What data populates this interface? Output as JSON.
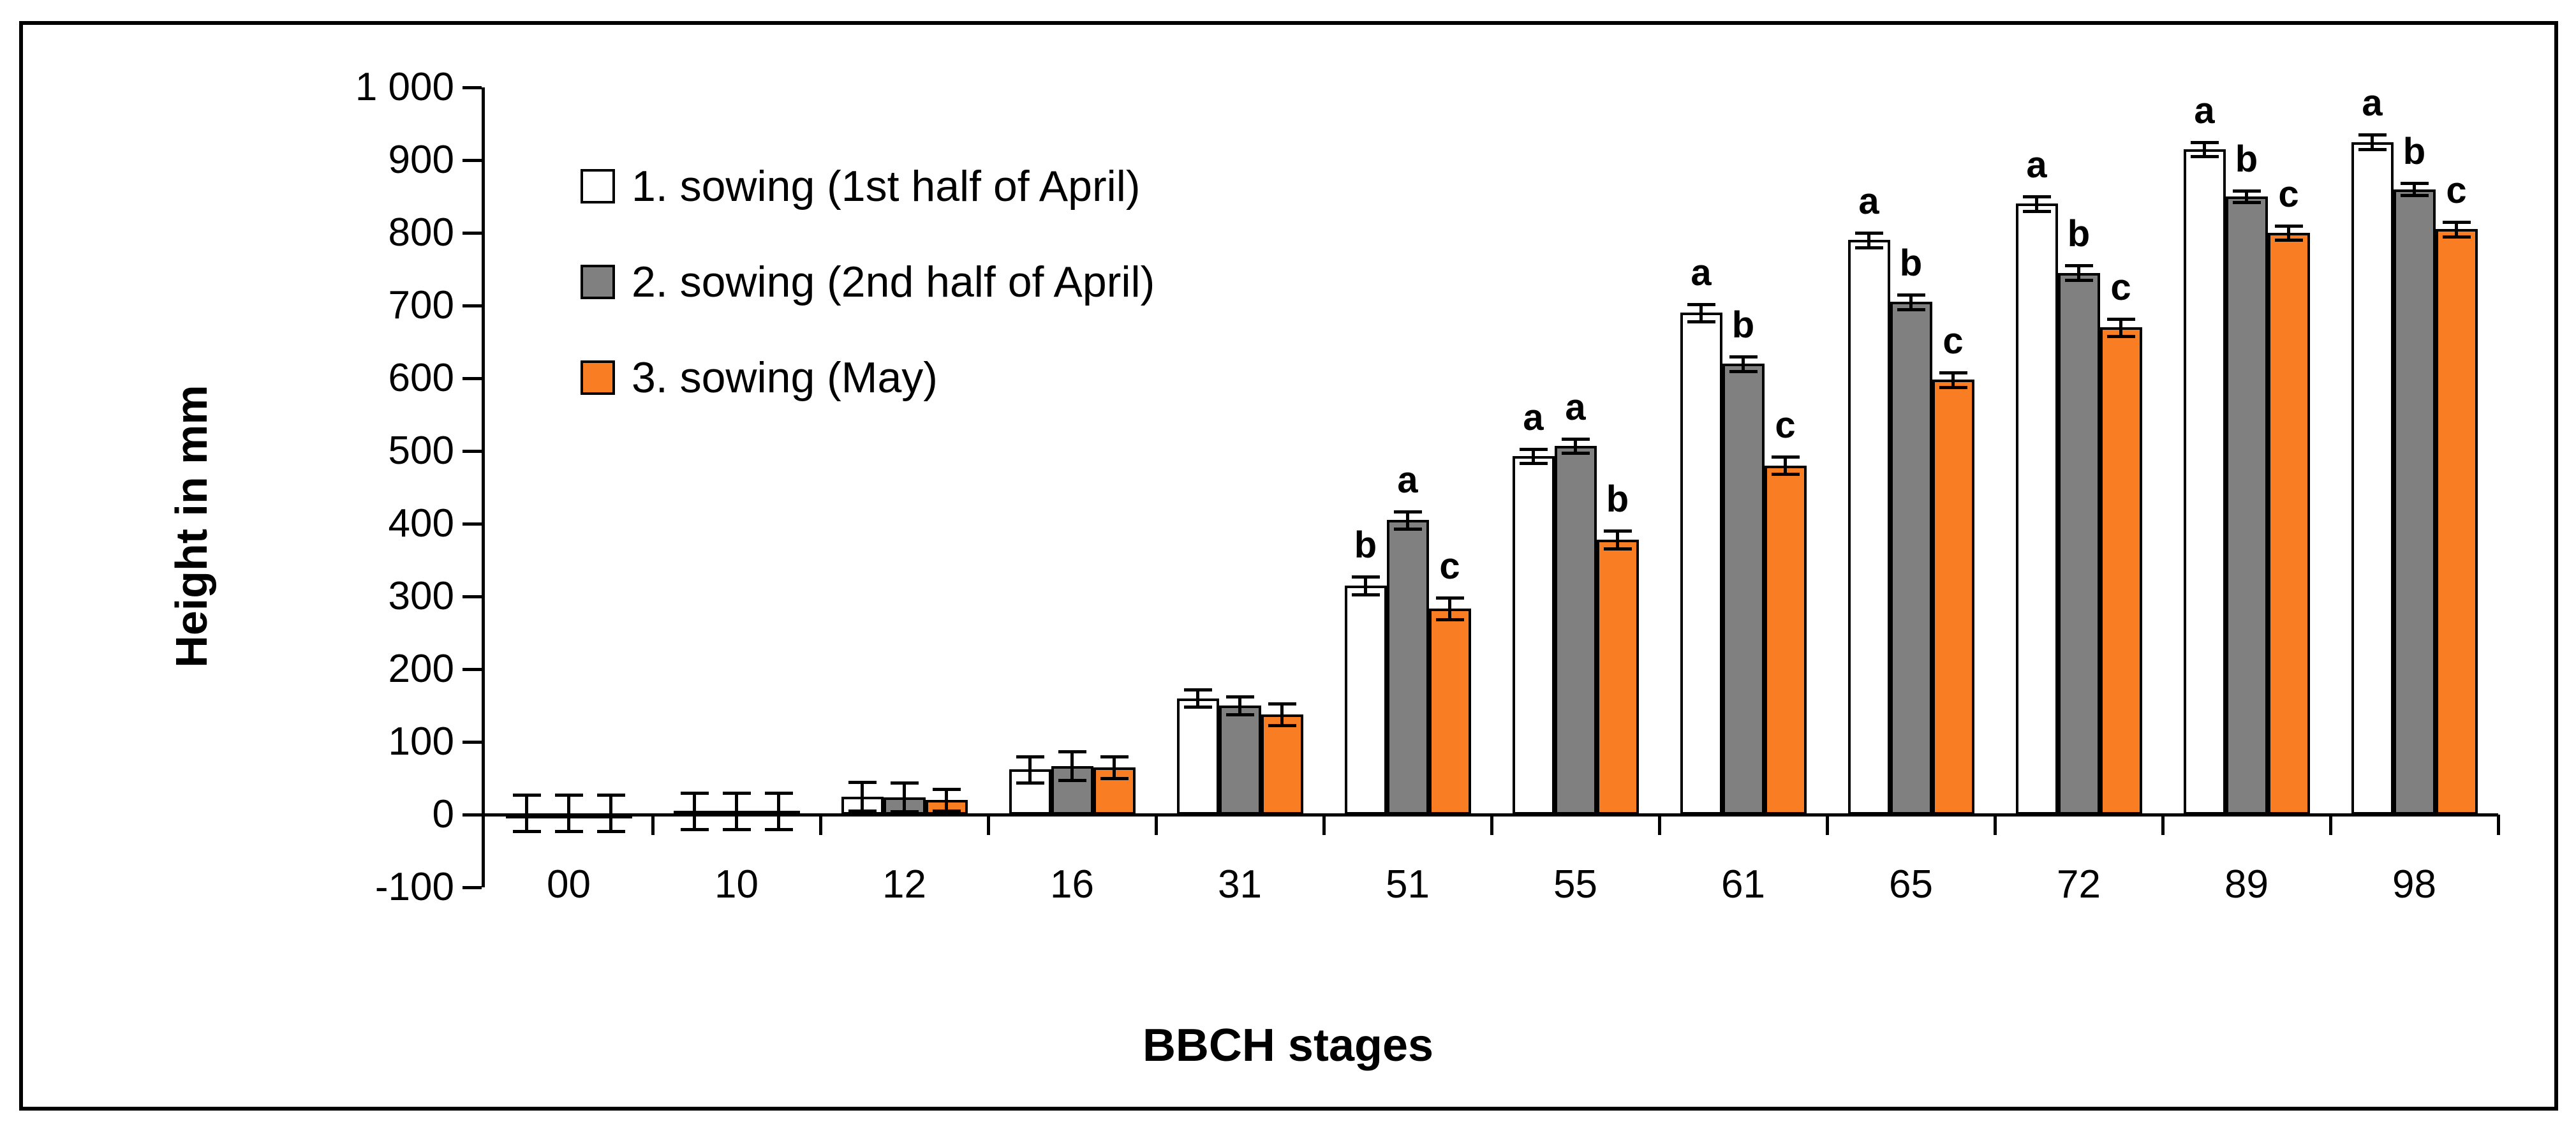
{
  "figure": {
    "background_color": "#FFFFFF",
    "border_color": "#000000"
  },
  "y_axis": {
    "title": "Height in mm",
    "tick_labels": [
      "1 000",
      "900",
      "800",
      "700",
      "600",
      "500",
      "400",
      "300",
      "200",
      "100",
      "0",
      "-100"
    ],
    "tick_values": [
      1000,
      900,
      800,
      700,
      600,
      500,
      400,
      300,
      200,
      100,
      0,
      -100
    ]
  },
  "x_axis": {
    "title": "BBCH stages",
    "category_labels": [
      "00",
      "10",
      "12",
      "16",
      "31",
      "51",
      "55",
      "61",
      "65",
      "72",
      "89",
      "98"
    ]
  },
  "legend": {
    "items": [
      {
        "label": "1. sowing (1st half of April)",
        "color": "#FFFFFF"
      },
      {
        "label": "2. sowing (2nd half of April)",
        "color": "#808080"
      },
      {
        "label": "3. sowing (May)",
        "color": "#F87D23"
      }
    ]
  },
  "chart_data": {
    "type": "bar",
    "title": "",
    "xlabel": "BBCH stages",
    "ylabel": "Height in mm",
    "ylim": [
      -100,
      1000
    ],
    "ytick_step": 100,
    "grid": false,
    "legend_position": "upper-left-inside",
    "categories": [
      "00",
      "10",
      "12",
      "16",
      "31",
      "51",
      "55",
      "61",
      "65",
      "72",
      "89",
      "98"
    ],
    "series": [
      {
        "name": "1. sowing (1st half of April)",
        "fill_color": "#FFFFFF",
        "border_color": "#000000",
        "values": [
          2,
          5,
          25,
          62,
          160,
          315,
          493,
          690,
          790,
          840,
          915,
          925
        ],
        "errors": [
          25,
          25,
          20,
          18,
          12,
          12,
          10,
          12,
          10,
          10,
          10,
          10
        ],
        "sig_letters": [
          "",
          "",
          "",
          "",
          "",
          "b",
          "a",
          "a",
          "a",
          "a",
          "a",
          "a"
        ]
      },
      {
        "name": "2. sowing (2nd half of April)",
        "fill_color": "#808080",
        "border_color": "#000000",
        "values": [
          2,
          5,
          24,
          67,
          150,
          405,
          507,
          620,
          705,
          745,
          850,
          860
        ],
        "errors": [
          25,
          25,
          20,
          20,
          12,
          12,
          10,
          10,
          10,
          10,
          8,
          8
        ],
        "sig_letters": [
          "",
          "",
          "",
          "",
          "",
          "a",
          "a",
          "b",
          "b",
          "b",
          "b",
          "b"
        ]
      },
      {
        "name": "3. sowing (May)",
        "fill_color": "#F87D23",
        "border_color": "#000000",
        "values": [
          2,
          5,
          20,
          65,
          138,
          283,
          378,
          480,
          598,
          670,
          800,
          805
        ],
        "errors": [
          25,
          25,
          15,
          15,
          15,
          15,
          12,
          12,
          10,
          12,
          10,
          10
        ],
        "sig_letters": [
          "",
          "",
          "",
          "",
          "",
          "c",
          "b",
          "c",
          "c",
          "c",
          "c",
          "c"
        ]
      }
    ]
  }
}
